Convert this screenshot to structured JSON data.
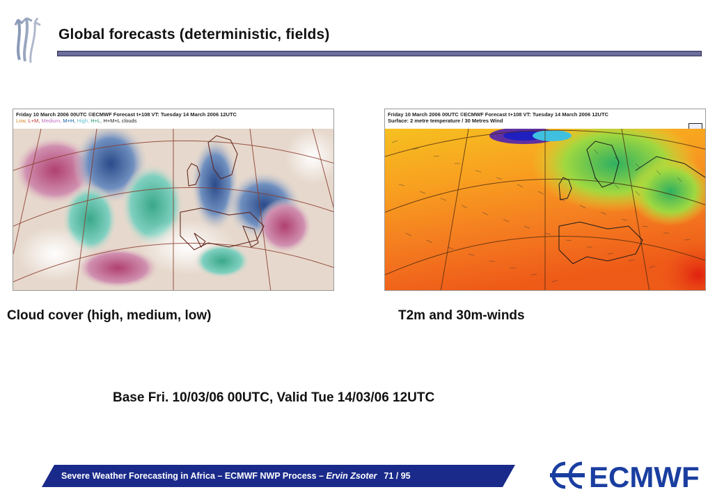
{
  "header": {
    "title": "Global forecasts (deterministic, fields)"
  },
  "maps": [
    {
      "header_line1": "Friday 10 March 2006 00UTC ©ECMWF Forecast t+108 VT: Tuesday 14 March 2006 12UTC",
      "header_line2_parts": [
        "Low,",
        "L+M,",
        "Medium,",
        "M+H,",
        "High,",
        "H+L,",
        "H+M+L clouds"
      ],
      "header_line2_colors": [
        "#d08a20",
        "#c03030",
        "#c070c0",
        "#1060a0",
        "#60c0d0",
        "#209060",
        "#222222"
      ],
      "caption": "Cloud cover (high, medium, low)"
    },
    {
      "header_line1": "Friday 10 March 2006 00UTC ©ECMWF Forecast t+108 VT: Tuesday 14 March 2006 12UTC",
      "header_line2": "Surface: 2 metre temperature / 30 Metres Wind",
      "caption": "T2m and 30m-winds"
    }
  ],
  "base_info": "Base Fri. 10/03/06 00UTC, Valid Tue 14/03/06 12UTC",
  "footer": {
    "main": "Severe Weather Forecasting in Africa – ECMWF NWP Process – ",
    "author": "Ervin Zsoter",
    "page": "71 / 95"
  },
  "logo_text": "ECMWF",
  "colors": {
    "title_bar": "#6d6d9a",
    "footer_bar": "#1a2a8a",
    "logo_blue": "#1a3ea0"
  }
}
